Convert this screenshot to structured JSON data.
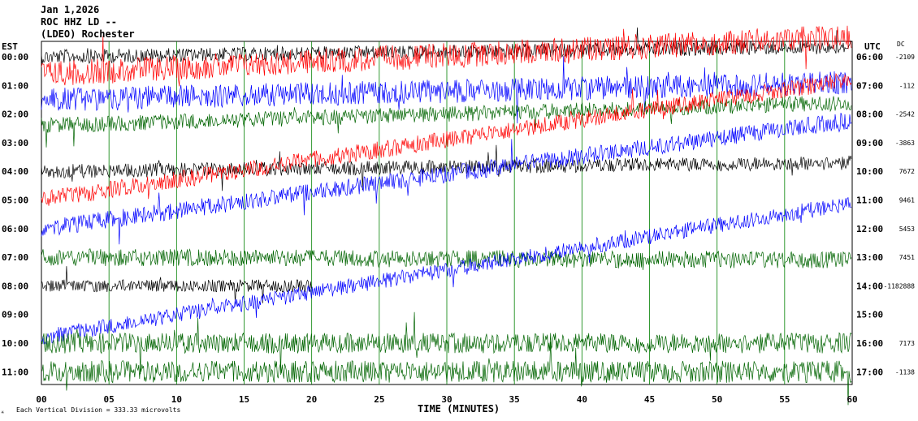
{
  "header": {
    "date": "Jan 1,2026",
    "channel": "ROC HHZ LD --",
    "network": "(LDEO) Rochester"
  },
  "left_axis_label": "EST",
  "right_axis_label": "UTC",
  "dc_label": "DC",
  "footer": {
    "scale_note": "Each Vertical Division =  333.33 microvolts",
    "xaxis_title": "TIME (MINUTES)"
  },
  "colors": {
    "black": "#000000",
    "red": "#ff0000",
    "blue": "#0000ff",
    "green": "#006400",
    "grid": "#008000"
  },
  "chart_data": {
    "type": "line",
    "title": "ROC HHZ LD --",
    "xlabel": "TIME (MINUTES)",
    "xlim": [
      0,
      60
    ],
    "x_ticks": [
      "00",
      "05",
      "10",
      "15",
      "20",
      "25",
      "30",
      "35",
      "40",
      "45",
      "50",
      "55",
      "60"
    ],
    "rows": [
      {
        "est": "00:00",
        "utc": "06:00",
        "dc": "-2109",
        "color": "black",
        "amplitude": 0.45,
        "drift": [
          0.0,
          -0.35
        ]
      },
      {
        "est": "01:00",
        "utc": "07:00",
        "dc": "-112",
        "color": "red",
        "amplitude": 0.8,
        "drift": [
          -0.4,
          -1.7
        ]
      },
      {
        "est": "02:00",
        "utc": "08:00",
        "dc": "-2542",
        "color": "blue",
        "amplitude": 0.75,
        "drift": [
          -0.5,
          -1.1
        ]
      },
      {
        "est": "03:00",
        "utc": "09:00",
        "dc": "-3863",
        "color": "green",
        "amplitude": 0.5,
        "drift": [
          -0.6,
          -1.4
        ]
      },
      {
        "est": "04:00",
        "utc": "10:00",
        "dc": "7672",
        "color": "black",
        "amplitude": 0.45,
        "drift": [
          0.0,
          -0.3
        ]
      },
      {
        "est": "05:00",
        "utc": "11:00",
        "dc": "9461",
        "color": "red",
        "amplitude": 0.55,
        "drift": [
          0.0,
          -4.2
        ]
      },
      {
        "est": "06:00",
        "utc": "12:00",
        "dc": "5453",
        "color": "blue",
        "amplitude": 0.55,
        "drift": [
          0.0,
          -3.8
        ]
      },
      {
        "est": "07:00",
        "utc": "13:00",
        "dc": "7451",
        "color": "green",
        "amplitude": 0.55,
        "drift": [
          0.0,
          0.1
        ]
      },
      {
        "est": "08:00",
        "utc": "14:00",
        "dc": "-1182888",
        "color": "black",
        "amplitude": 0.4,
        "drift": [
          0.0,
          0.0
        ],
        "end_minute": 20
      },
      {
        "est": "09:00",
        "utc": "15:00",
        "dc": "",
        "color": "blue",
        "amplitude": 0.5,
        "drift": [
          0.8,
          -3.9
        ]
      },
      {
        "est": "10:00",
        "utc": "16:00",
        "dc": "7173",
        "color": "green",
        "amplitude": 0.65,
        "drift": [
          0.0,
          0.0
        ]
      },
      {
        "est": "11:00",
        "utc": "17:00",
        "dc": "-1138",
        "color": "green",
        "amplitude": 0.7,
        "drift": [
          0.0,
          0.0
        ]
      }
    ]
  }
}
